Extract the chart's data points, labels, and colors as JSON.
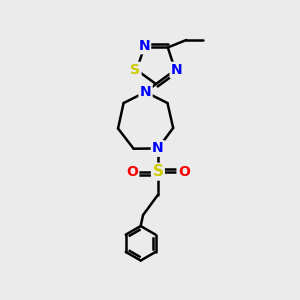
{
  "bg_color": "#ebebeb",
  "bond_color": "#000000",
  "N_color": "#0000ff",
  "S_color": "#cccc00",
  "O_color": "#ff0000",
  "line_width": 1.8,
  "font_size": 10,
  "figsize": [
    3.0,
    3.0
  ],
  "dpi": 100,
  "xlim": [
    0,
    10
  ],
  "ylim": [
    0,
    10
  ]
}
